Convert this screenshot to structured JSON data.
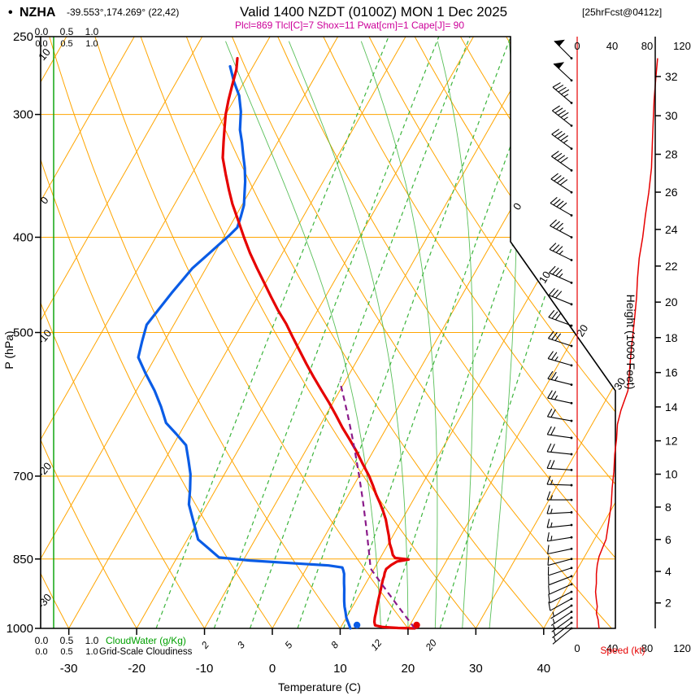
{
  "header": {
    "bullet": "•",
    "station": "NZHA",
    "coords": "-39.553°,174.269° (22,42)",
    "valid": "Valid 1400 NZDT (0100Z) MON 1 Dec 2025",
    "fcst": "[25hrFcst@0412z]",
    "indices": "Plcl=869 Tlcl[C]=7 Shox=11 Pwat[cm]=1 Cape[J]= 90"
  },
  "axes": {
    "pressure_label": "P (hPa)",
    "pressure_ticks": [
      250,
      300,
      400,
      500,
      700,
      850,
      1000
    ],
    "temp_label": "Temperature (C)",
    "temp_ticks": [
      -30,
      -20,
      -10,
      0,
      10,
      20,
      30,
      40
    ],
    "height_label": "Height (1000 Feet)",
    "height_ticks": [
      2,
      4,
      6,
      8,
      10,
      12,
      14,
      16,
      18,
      20,
      22,
      24,
      26,
      28,
      30,
      32
    ],
    "speed_label": "Speed (kt)",
    "speed_ticks": [
      0,
      40,
      80,
      120
    ],
    "cloudwater_label": "CloudWater (g/Kg)",
    "cloudiness_label": "Grid-Scale Cloudiness",
    "cloud_scale_ticks": [
      "0.0",
      "0.5",
      "1.0"
    ]
  },
  "colors": {
    "grid": "#ffa500",
    "green_line": "#3cb43c",
    "green_text": "#00a000",
    "temperature": "#e60000",
    "dewpoint": "#0a5ce6",
    "parcel": "#8a1a8a",
    "frame": "#000000"
  },
  "chart_data": {
    "type": "skewt_log_p_sounding",
    "pressure_top_hpa": 250,
    "pressure_bottom_hpa": 1000,
    "temp_axis_range_c": [
      -30,
      40
    ],
    "pressure_gridlines_hpa": [
      300,
      400,
      500,
      700,
      850
    ],
    "isotherm_step_c": 10,
    "isotherm_labels_right_c": [
      0,
      10,
      20,
      30
    ],
    "dry_adiabat_step_c": 10,
    "dry_adiabat_labels_left_c": [
      10,
      0,
      -10,
      -20,
      -30
    ],
    "mixing_ratio_lines_gkg": [
      1,
      2,
      3,
      5,
      8,
      12,
      20
    ],
    "mixing_ratio_labels_gkg": [
      2,
      3,
      5,
      8,
      12,
      20
    ],
    "moist_adiabats_start_c": [
      16,
      20,
      24,
      28,
      32
    ],
    "surface": {
      "pressure_hpa": 1000,
      "temperature_c": 21,
      "dewpoint_c": 12.2
    },
    "parcel": {
      "plcl_hpa": 869,
      "tlcl_c": 7,
      "shox": 11,
      "pwat_cm": 1,
      "cape_j": 90
    },
    "temperature_profile_p_c": [
      [
        263,
        -53
      ],
      [
        270,
        -52.2
      ],
      [
        280,
        -51.5
      ],
      [
        290,
        -50.8
      ],
      [
        300,
        -50
      ],
      [
        310,
        -49
      ],
      [
        320,
        -48
      ],
      [
        332,
        -46.8
      ],
      [
        345,
        -45
      ],
      [
        358,
        -43.2
      ],
      [
        370,
        -41.5
      ],
      [
        385,
        -39.2
      ],
      [
        400,
        -37
      ],
      [
        415,
        -34.8
      ],
      [
        430,
        -32.5
      ],
      [
        445,
        -30.2
      ],
      [
        460,
        -28
      ],
      [
        475,
        -25.8
      ],
      [
        490,
        -23.5
      ],
      [
        505,
        -21.5
      ],
      [
        520,
        -19.5
      ],
      [
        538,
        -17.2
      ],
      [
        555,
        -15
      ],
      [
        572,
        -12.8
      ],
      [
        590,
        -10.5
      ],
      [
        607,
        -8.5
      ],
      [
        625,
        -6.5
      ],
      [
        642,
        -4.5
      ],
      [
        660,
        -2.5
      ],
      [
        680,
        -0.5
      ],
      [
        700,
        1.5
      ],
      [
        715,
        2.8
      ],
      [
        730,
        4
      ],
      [
        745,
        5.3
      ],
      [
        760,
        6.5
      ],
      [
        775,
        7.6
      ],
      [
        790,
        8.5
      ],
      [
        805,
        9.4
      ],
      [
        820,
        10.2
      ],
      [
        832,
        11
      ],
      [
        842,
        11.6
      ],
      [
        848,
        12.2
      ],
      [
        851,
        14.3
      ],
      [
        855,
        12.8
      ],
      [
        862,
        12.2
      ],
      [
        870,
        11.8
      ],
      [
        878,
        11.9
      ],
      [
        885,
        12.1
      ],
      [
        892,
        12.2
      ],
      [
        900,
        12.4
      ],
      [
        912,
        12.7
      ],
      [
        925,
        13
      ],
      [
        938,
        13.3
      ],
      [
        950,
        13.6
      ],
      [
        962,
        13.9
      ],
      [
        975,
        14.2
      ],
      [
        985,
        14.5
      ],
      [
        993,
        14.9
      ],
      [
        997,
        16.2
      ],
      [
        999,
        18.5
      ],
      [
        1000,
        21
      ]
    ],
    "dewpoint_profile_p_c": [
      [
        268,
        -53.4
      ],
      [
        278,
        -51.5
      ],
      [
        287,
        -49.6
      ],
      [
        298,
        -48
      ],
      [
        311,
        -46.6
      ],
      [
        320,
        -45.3
      ],
      [
        330,
        -44
      ],
      [
        340,
        -42.7
      ],
      [
        351,
        -41.5
      ],
      [
        361,
        -40.6
      ],
      [
        371,
        -39.7
      ],
      [
        381,
        -39.2
      ],
      [
        391,
        -38.8
      ],
      [
        398,
        -39.3
      ],
      [
        406,
        -40
      ],
      [
        418,
        -41
      ],
      [
        430,
        -42
      ],
      [
        443,
        -42.5
      ],
      [
        456,
        -43
      ],
      [
        473,
        -43.5
      ],
      [
        491,
        -44
      ],
      [
        510,
        -43.3
      ],
      [
        530,
        -42.5
      ],
      [
        551,
        -40
      ],
      [
        573,
        -37.3
      ],
      [
        595,
        -35
      ],
      [
        618,
        -32.9
      ],
      [
        634,
        -30.5
      ],
      [
        651,
        -28.1
      ],
      [
        674,
        -26.5
      ],
      [
        697,
        -25
      ],
      [
        722,
        -23.8
      ],
      [
        748,
        -22.7
      ],
      [
        780,
        -20.5
      ],
      [
        812,
        -18.4
      ],
      [
        830,
        -16
      ],
      [
        847,
        -13.8
      ],
      [
        853,
        -9
      ],
      [
        858,
        -3
      ],
      [
        863,
        3
      ],
      [
        867,
        5.2
      ],
      [
        873,
        5.6
      ],
      [
        880,
        6
      ],
      [
        890,
        6.4
      ],
      [
        900,
        6.8
      ],
      [
        912,
        7.3
      ],
      [
        925,
        7.8
      ],
      [
        938,
        8.3
      ],
      [
        950,
        8.8
      ],
      [
        962,
        9.4
      ],
      [
        975,
        10
      ],
      [
        988,
        10.8
      ],
      [
        1000,
        11.5
      ]
    ],
    "wind_barbs_p_dir_kt": [
      [
        263,
        315,
        50
      ],
      [
        277,
        313,
        50
      ],
      [
        292,
        310,
        45
      ],
      [
        308,
        308,
        45
      ],
      [
        325,
        306,
        45
      ],
      [
        342,
        305,
        40
      ],
      [
        360,
        303,
        40
      ],
      [
        380,
        300,
        40
      ],
      [
        400,
        298,
        35
      ],
      [
        422,
        296,
        35
      ],
      [
        445,
        294,
        35
      ],
      [
        468,
        292,
        30
      ],
      [
        492,
        290,
        30
      ],
      [
        516,
        288,
        30
      ],
      [
        540,
        286,
        25
      ],
      [
        565,
        284,
        25
      ],
      [
        590,
        282,
        25
      ],
      [
        615,
        280,
        20
      ],
      [
        640,
        278,
        20
      ],
      [
        665,
        276,
        20
      ],
      [
        690,
        274,
        20
      ],
      [
        715,
        272,
        15
      ],
      [
        740,
        270,
        15
      ],
      [
        762,
        267,
        15
      ],
      [
        785,
        264,
        15
      ],
      [
        808,
        261,
        15
      ],
      [
        830,
        258,
        10
      ],
      [
        850,
        255,
        10
      ],
      [
        868,
        252,
        10
      ],
      [
        885,
        249,
        10
      ],
      [
        902,
        246,
        10
      ],
      [
        918,
        243,
        10
      ],
      [
        933,
        241,
        10
      ],
      [
        948,
        238,
        5
      ],
      [
        962,
        236,
        5
      ],
      [
        975,
        234,
        5
      ],
      [
        987,
        232,
        5
      ],
      [
        1000,
        230,
        5
      ]
    ],
    "speed_profile_p_kt": [
      [
        263,
        92
      ],
      [
        275,
        90
      ],
      [
        290,
        88
      ],
      [
        305,
        87
      ],
      [
        320,
        86
      ],
      [
        340,
        85
      ],
      [
        360,
        82
      ],
      [
        380,
        78
      ],
      [
        400,
        75
      ],
      [
        420,
        71
      ],
      [
        440,
        69
      ],
      [
        460,
        68
      ],
      [
        480,
        66
      ],
      [
        500,
        64
      ],
      [
        520,
        62
      ],
      [
        545,
        60
      ],
      [
        573,
        58
      ],
      [
        600,
        50
      ],
      [
        620,
        46
      ],
      [
        642,
        45
      ],
      [
        665,
        43
      ],
      [
        693,
        42
      ],
      [
        720,
        40
      ],
      [
        748,
        39
      ],
      [
        780,
        36
      ],
      [
        812,
        33
      ],
      [
        828,
        29
      ],
      [
        845,
        25
      ],
      [
        862,
        23
      ],
      [
        880,
        22
      ],
      [
        900,
        22
      ],
      [
        918,
        21
      ],
      [
        935,
        22
      ],
      [
        950,
        23
      ],
      [
        965,
        22
      ],
      [
        980,
        24
      ],
      [
        1000,
        25
      ]
    ]
  }
}
